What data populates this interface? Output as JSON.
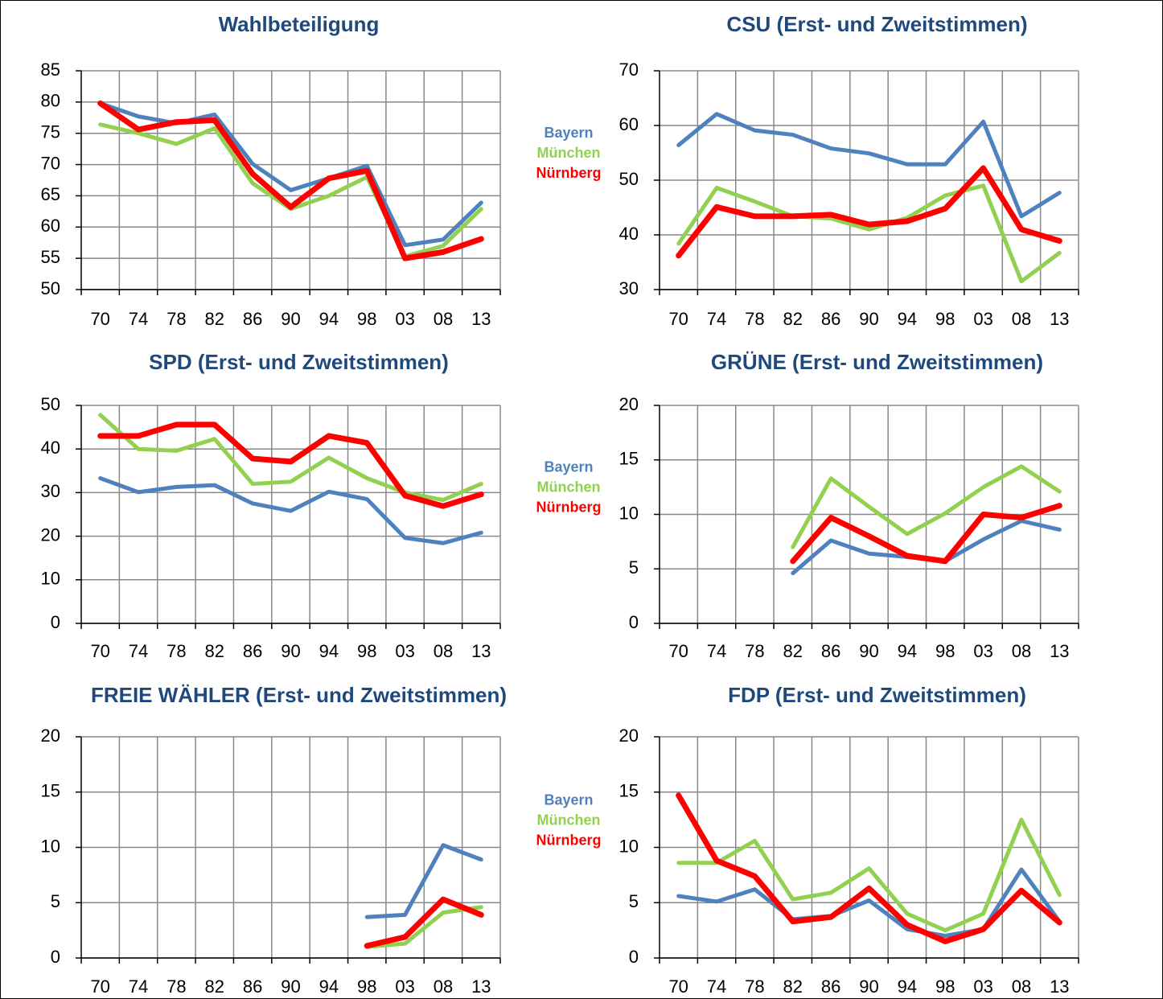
{
  "chart_data": [
    {
      "type": "line",
      "title": "Wahlbeteiligung",
      "categories": [
        "70",
        "74",
        "78",
        "82",
        "86",
        "90",
        "94",
        "98",
        "03",
        "08",
        "13"
      ],
      "ylim": [
        50,
        85
      ],
      "yticks": [
        50,
        55,
        60,
        65,
        70,
        75,
        80,
        85
      ],
      "grid": true,
      "series": [
        {
          "name": "Bayern",
          "color": "#4f81bd",
          "values": [
            79.8,
            77.7,
            76.6,
            78.0,
            70.1,
            65.9,
            67.8,
            69.8,
            57.1,
            58.0,
            63.9
          ]
        },
        {
          "name": "München",
          "color": "#92d050",
          "values": [
            76.4,
            75.0,
            73.3,
            75.8,
            67.0,
            62.9,
            65.0,
            68.0,
            55.3,
            57.0,
            62.9
          ]
        },
        {
          "name": "Nürnberg",
          "color": "#ff0000",
          "values": [
            79.8,
            75.6,
            76.8,
            77.1,
            68.5,
            63.2,
            67.8,
            69.0,
            55.0,
            56.0,
            58.1
          ]
        }
      ]
    },
    {
      "type": "line",
      "title": "CSU (Erst- und Zweitstimmen)",
      "categories": [
        "70",
        "74",
        "78",
        "82",
        "86",
        "90",
        "94",
        "98",
        "03",
        "08",
        "13"
      ],
      "ylim": [
        30,
        70
      ],
      "yticks": [
        30,
        40,
        50,
        60,
        70
      ],
      "grid": true,
      "series": [
        {
          "name": "Bayern",
          "color": "#4f81bd",
          "values": [
            56.4,
            62.1,
            59.1,
            58.3,
            55.8,
            54.9,
            52.9,
            52.9,
            60.7,
            43.4,
            47.7
          ]
        },
        {
          "name": "München",
          "color": "#92d050",
          "values": [
            38.4,
            48.6,
            46.1,
            43.4,
            43.0,
            41.0,
            43.1,
            47.2,
            49.0,
            31.5,
            36.7
          ]
        },
        {
          "name": "Nürnberg",
          "color": "#ff0000",
          "values": [
            36.2,
            45.1,
            43.4,
            43.4,
            43.7,
            41.9,
            42.5,
            44.8,
            52.2,
            41.0,
            38.9
          ]
        }
      ]
    },
    {
      "type": "line",
      "title": "SPD (Erst- und Zweitstimmen)",
      "categories": [
        "70",
        "74",
        "78",
        "82",
        "86",
        "90",
        "94",
        "98",
        "03",
        "08",
        "13"
      ],
      "ylim": [
        0,
        50
      ],
      "yticks": [
        0,
        10,
        20,
        30,
        40,
        50
      ],
      "grid": true,
      "series": [
        {
          "name": "Bayern",
          "color": "#4f81bd",
          "values": [
            33.3,
            30.1,
            31.3,
            31.7,
            27.5,
            25.8,
            30.2,
            28.5,
            19.6,
            18.4,
            20.8
          ]
        },
        {
          "name": "München",
          "color": "#92d050",
          "values": [
            47.8,
            40.0,
            39.6,
            42.3,
            32.0,
            32.5,
            38.0,
            33.3,
            30.0,
            28.3,
            32.0
          ]
        },
        {
          "name": "Nürnberg",
          "color": "#ff0000",
          "values": [
            43.0,
            43.0,
            45.6,
            45.6,
            37.8,
            37.1,
            43.0,
            41.4,
            29.3,
            26.9,
            29.6
          ]
        }
      ]
    },
    {
      "type": "line",
      "title": "GRÜNE (Erst- und Zweitstimmen)",
      "categories": [
        "70",
        "74",
        "78",
        "82",
        "86",
        "90",
        "94",
        "98",
        "03",
        "08",
        "13"
      ],
      "ylim": [
        0,
        20
      ],
      "yticks": [
        0,
        5,
        10,
        15,
        20
      ],
      "grid": true,
      "series": [
        {
          "name": "Bayern",
          "color": "#4f81bd",
          "values": [
            null,
            null,
            null,
            4.6,
            7.6,
            6.4,
            6.1,
            5.7,
            7.7,
            9.4,
            8.6
          ]
        },
        {
          "name": "München",
          "color": "#92d050",
          "values": [
            null,
            null,
            null,
            7.0,
            13.3,
            10.7,
            8.2,
            10.1,
            12.5,
            14.4,
            12.1
          ]
        },
        {
          "name": "Nürnberg",
          "color": "#ff0000",
          "values": [
            null,
            null,
            null,
            5.7,
            9.7,
            8.0,
            6.2,
            5.7,
            10.0,
            9.7,
            10.8
          ]
        }
      ]
    },
    {
      "type": "line",
      "title": "FREIE WÄHLER (Erst- und Zweitstimmen)",
      "categories": [
        "70",
        "74",
        "78",
        "82",
        "86",
        "90",
        "94",
        "98",
        "03",
        "08",
        "13"
      ],
      "ylim": [
        0,
        20
      ],
      "yticks": [
        0,
        5,
        10,
        15,
        20
      ],
      "grid": true,
      "series": [
        {
          "name": "Bayern",
          "color": "#4f81bd",
          "values": [
            null,
            null,
            null,
            null,
            null,
            null,
            null,
            3.7,
            3.9,
            10.2,
            8.9
          ]
        },
        {
          "name": "München",
          "color": "#92d050",
          "values": [
            null,
            null,
            null,
            null,
            null,
            null,
            null,
            1.0,
            1.3,
            4.1,
            4.6
          ]
        },
        {
          "name": "Nürnberg",
          "color": "#ff0000",
          "values": [
            null,
            null,
            null,
            null,
            null,
            null,
            null,
            1.1,
            1.9,
            5.3,
            3.9
          ]
        }
      ]
    },
    {
      "type": "line",
      "title": "FDP (Erst- und Zweitstimmen)",
      "categories": [
        "70",
        "74",
        "78",
        "82",
        "86",
        "90",
        "94",
        "98",
        "03",
        "08",
        "13"
      ],
      "ylim": [
        0,
        20
      ],
      "yticks": [
        0,
        5,
        10,
        15,
        20
      ],
      "grid": true,
      "series": [
        {
          "name": "Bayern",
          "color": "#4f81bd",
          "values": [
            5.6,
            5.1,
            6.2,
            3.5,
            3.8,
            5.2,
            2.6,
            2.0,
            2.6,
            8.0,
            3.3
          ]
        },
        {
          "name": "München",
          "color": "#92d050",
          "values": [
            8.6,
            8.6,
            10.6,
            5.3,
            5.9,
            8.1,
            4.0,
            2.5,
            4.0,
            12.5,
            5.7
          ]
        },
        {
          "name": "Nürnberg",
          "color": "#ff0000",
          "values": [
            14.7,
            8.8,
            7.4,
            3.3,
            3.7,
            6.3,
            3.0,
            1.5,
            2.6,
            6.1,
            3.2
          ]
        }
      ]
    }
  ]
}
